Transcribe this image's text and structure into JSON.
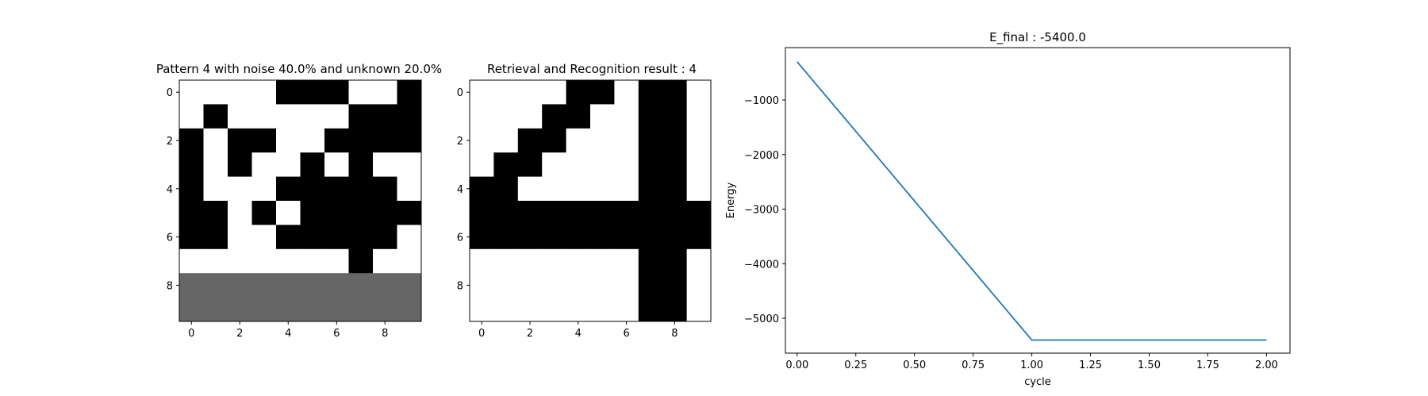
{
  "chart_data": [
    {
      "type": "heatmap",
      "title": "Pattern 4 with noise 40.0% and unknown 20.0%",
      "xticks": [
        "0",
        "2",
        "4",
        "6",
        "8"
      ],
      "yticks": [
        "0",
        "2",
        "4",
        "6",
        "8"
      ],
      "legend": {
        "1": "black",
        "0": "white",
        "-1": "gray (unknown)"
      },
      "grid": [
        [
          0,
          0,
          0,
          0,
          1,
          1,
          1,
          0,
          0,
          1
        ],
        [
          0,
          1,
          0,
          0,
          0,
          0,
          0,
          1,
          1,
          1
        ],
        [
          1,
          0,
          1,
          1,
          0,
          0,
          1,
          1,
          1,
          1
        ],
        [
          1,
          0,
          1,
          0,
          0,
          1,
          0,
          1,
          0,
          0
        ],
        [
          1,
          0,
          0,
          0,
          1,
          1,
          1,
          1,
          1,
          0
        ],
        [
          1,
          1,
          0,
          1,
          0,
          1,
          1,
          1,
          1,
          1
        ],
        [
          1,
          1,
          0,
          0,
          1,
          1,
          1,
          1,
          1,
          0
        ],
        [
          0,
          0,
          0,
          0,
          0,
          0,
          0,
          1,
          0,
          0
        ],
        [
          -1,
          -1,
          -1,
          -1,
          -1,
          -1,
          -1,
          -1,
          -1,
          -1
        ],
        [
          -1,
          -1,
          -1,
          -1,
          -1,
          -1,
          -1,
          -1,
          -1,
          -1
        ]
      ]
    },
    {
      "type": "heatmap",
      "title": "Retrieval and Recognition result : 4",
      "xticks": [
        "0",
        "2",
        "4",
        "6",
        "8"
      ],
      "yticks": [
        "0",
        "2",
        "4",
        "6",
        "8"
      ],
      "grid": [
        [
          0,
          0,
          0,
          0,
          1,
          1,
          0,
          1,
          1,
          0
        ],
        [
          0,
          0,
          0,
          1,
          1,
          0,
          0,
          1,
          1,
          0
        ],
        [
          0,
          0,
          1,
          1,
          0,
          0,
          0,
          1,
          1,
          0
        ],
        [
          0,
          1,
          1,
          0,
          0,
          0,
          0,
          1,
          1,
          0
        ],
        [
          1,
          1,
          0,
          0,
          0,
          0,
          0,
          1,
          1,
          0
        ],
        [
          1,
          1,
          1,
          1,
          1,
          1,
          1,
          1,
          1,
          1
        ],
        [
          1,
          1,
          1,
          1,
          1,
          1,
          1,
          1,
          1,
          1
        ],
        [
          0,
          0,
          0,
          0,
          0,
          0,
          0,
          1,
          1,
          0
        ],
        [
          0,
          0,
          0,
          0,
          0,
          0,
          0,
          1,
          1,
          0
        ],
        [
          0,
          0,
          0,
          0,
          0,
          0,
          0,
          1,
          1,
          0
        ]
      ]
    },
    {
      "type": "line",
      "title": "E_final : -5400.0",
      "xlabel": "cycle",
      "ylabel": "Energy",
      "x": [
        0,
        1,
        2
      ],
      "series": [
        {
          "values": [
            -300,
            -5400,
            -5400
          ],
          "color": "#1f77b4"
        }
      ],
      "xlim": [
        -0.05,
        2.1
      ],
      "ylim": [
        -5640,
        -40
      ],
      "xticks": [
        "0.00",
        "0.25",
        "0.50",
        "0.75",
        "1.00",
        "1.25",
        "1.50",
        "1.75",
        "2.00"
      ],
      "yticks": [
        "−1000",
        "−2000",
        "−3000",
        "−4000",
        "−5000"
      ],
      "xtick_values": [
        0,
        0.25,
        0.5,
        0.75,
        1.0,
        1.25,
        1.5,
        1.75,
        2.0
      ],
      "ytick_values": [
        -1000,
        -2000,
        -3000,
        -4000,
        -5000
      ]
    }
  ]
}
